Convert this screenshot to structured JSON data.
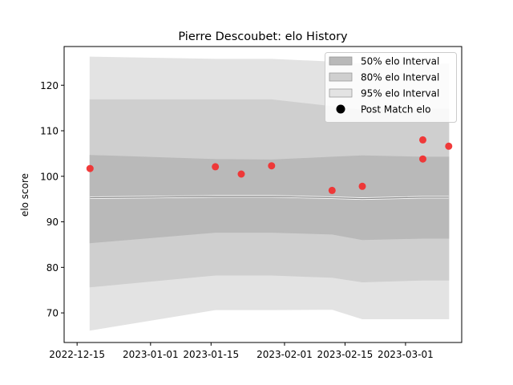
{
  "chart_data": {
    "type": "area",
    "title": "Pierre Descoubet: elo History",
    "xlabel": "",
    "ylabel": "elo score",
    "xlim": [
      "2022-12-12",
      "2023-03-14"
    ],
    "ylim": [
      63.5,
      128.5
    ],
    "x_ticks": [
      "2022-12-15",
      "2023-01-01",
      "2023-01-15",
      "2023-02-01",
      "2023-02-15",
      "2023-03-01"
    ],
    "y_ticks": [
      70,
      80,
      90,
      100,
      110,
      120
    ],
    "legend_position": "top-right",
    "bands": [
      {
        "name": "95% elo Interval",
        "color": "#e3e3e3",
        "x": [
          "2022-12-18",
          "2023-01-16",
          "2023-01-29",
          "2023-02-12",
          "2023-02-19",
          "2023-03-05",
          "2023-03-11"
        ],
        "lower": [
          66.2,
          70.7,
          70.7,
          70.8,
          68.7,
          68.7,
          68.7
        ],
        "upper": [
          126.2,
          125.7,
          125.7,
          125.1,
          124.7,
          124.7,
          124.7
        ]
      },
      {
        "name": "80% elo Interval",
        "color": "#cfcfcf",
        "x": [
          "2022-12-18",
          "2023-01-16",
          "2023-01-29",
          "2023-02-12",
          "2023-02-19",
          "2023-03-05",
          "2023-03-11"
        ],
        "lower": [
          75.7,
          78.3,
          78.3,
          77.8,
          76.8,
          77.2,
          77.2
        ],
        "upper": [
          116.8,
          116.8,
          116.8,
          115.3,
          114.5,
          114.8,
          114.8
        ]
      },
      {
        "name": "50% elo Interval",
        "color": "#b9b9b9",
        "x": [
          "2022-12-18",
          "2023-01-16",
          "2023-01-29",
          "2023-02-12",
          "2023-02-19",
          "2023-03-05",
          "2023-03-11"
        ],
        "lower": [
          85.4,
          87.7,
          87.7,
          87.3,
          86.1,
          86.4,
          86.4
        ],
        "upper": [
          104.6,
          103.7,
          103.6,
          104.2,
          104.5,
          104.2,
          104.2
        ]
      }
    ],
    "mean_line": {
      "x": [
        "2022-12-18",
        "2023-01-16",
        "2023-01-29",
        "2023-02-12",
        "2023-02-19",
        "2023-03-05",
        "2023-03-11"
      ],
      "values": [
        95.3,
        95.6,
        95.6,
        95.3,
        95.1,
        95.4,
        95.4
      ]
    },
    "series": [
      {
        "name": "Post Match elo",
        "color": "#f03030",
        "x": [
          "2022-12-18",
          "2023-01-16",
          "2023-01-22",
          "2023-01-29",
          "2023-02-12",
          "2023-02-19",
          "2023-03-05",
          "2023-03-05",
          "2023-03-11"
        ],
        "values": [
          101.7,
          102.1,
          100.5,
          102.3,
          96.9,
          97.8,
          103.8,
          108.0,
          106.6
        ]
      }
    ]
  }
}
